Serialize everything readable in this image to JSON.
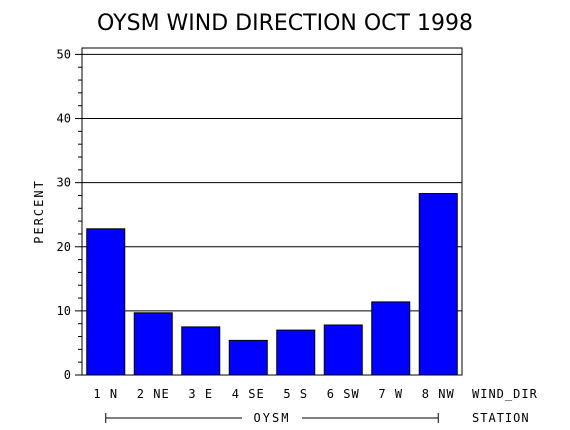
{
  "chart_data": {
    "type": "bar",
    "title": "OYSM WIND DIRECTION OCT 1998",
    "ylabel": "PERCENT",
    "xlabel": "WIND_DIR",
    "group_axis_label": "STATION",
    "group_label": "OYSM",
    "categories": [
      "1 N",
      "2 NE",
      "3 E",
      "4 SE",
      "5 S",
      "6 SW",
      "7 W",
      "8 NW"
    ],
    "values": [
      22.8,
      9.7,
      7.5,
      5.4,
      7.0,
      7.8,
      11.4,
      28.3
    ],
    "ylim": [
      0,
      51
    ],
    "yticks": [
      0,
      10,
      20,
      30,
      40,
      50
    ],
    "grid": true,
    "bar_color": "#0000ff"
  }
}
